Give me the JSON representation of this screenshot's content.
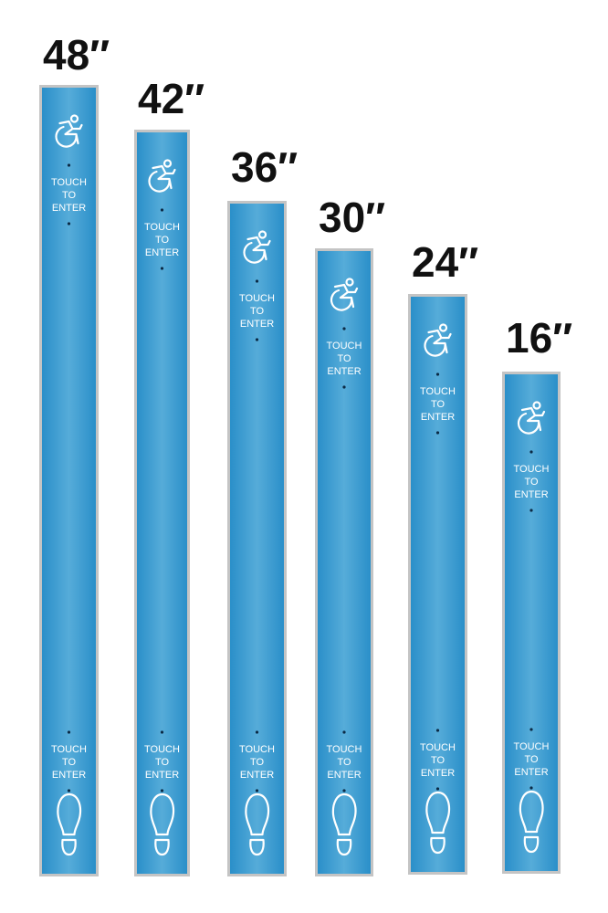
{
  "sizes": [
    "48″",
    "42″",
    "36″",
    "30″",
    "24″",
    "16″"
  ],
  "button_text": [
    "TOUCH",
    "TO",
    "ENTER"
  ]
}
